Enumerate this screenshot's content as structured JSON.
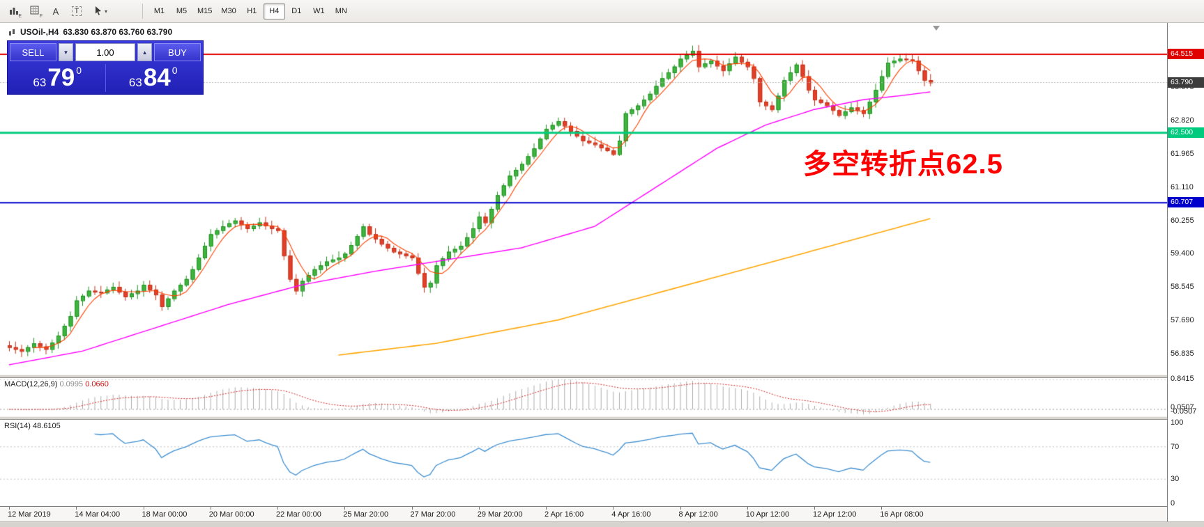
{
  "toolbar": {
    "text_tool_label": "A",
    "textbox_tool_label": "T",
    "indicator_icon_sub": "E",
    "grid_icon_sub": "F",
    "timeframes": [
      {
        "label": "M1",
        "active": false
      },
      {
        "label": "M5",
        "active": false
      },
      {
        "label": "M15",
        "active": false
      },
      {
        "label": "M30",
        "active": false
      },
      {
        "label": "H1",
        "active": false
      },
      {
        "label": "H4",
        "active": true
      },
      {
        "label": "D1",
        "active": false
      },
      {
        "label": "W1",
        "active": false
      },
      {
        "label": "MN",
        "active": false
      }
    ]
  },
  "chart": {
    "title": "USOil-,H4",
    "ohlc": "63.830 63.870 63.760 63.790",
    "annotation": "多空转折点62.5"
  },
  "order_panel": {
    "sell_label": "SELL",
    "buy_label": "BUY",
    "volume": "1.00",
    "volume_down_glyph": "▼",
    "volume_up_glyph": "▲",
    "sell_price_small": "63",
    "sell_price_big": "79",
    "sell_price_sup": "0",
    "buy_price_small": "63",
    "buy_price_big": "84",
    "buy_price_sup": "0"
  },
  "price_axis": {
    "labels": [
      {
        "text": "63.675",
        "price": 63.675
      },
      {
        "text": "62.820",
        "price": 62.82
      },
      {
        "text": "61.965",
        "price": 61.965
      },
      {
        "text": "61.110",
        "price": 61.11
      },
      {
        "text": "60.255",
        "price": 60.255
      },
      {
        "text": "59.400",
        "price": 59.4
      },
      {
        "text": "58.545",
        "price": 58.545
      },
      {
        "text": "57.690",
        "price": 57.69
      },
      {
        "text": "56.835",
        "price": 56.835
      }
    ],
    "badges": [
      {
        "text": "64.515",
        "price": 64.515,
        "bg": "#e00000"
      },
      {
        "text": "63.790",
        "price": 63.79,
        "bg": "#3c3c3c"
      },
      {
        "text": "62.500",
        "price": 62.5,
        "bg": "#00ca7d"
      },
      {
        "text": "60.707",
        "price": 60.707,
        "bg": "#0000cc"
      }
    ]
  },
  "macd": {
    "name": "MACD(12,26,9)",
    "main_value": "0.0995",
    "signal_value": "0.0660",
    "axis": [
      {
        "text": "0.8415",
        "v": 0.8415
      },
      {
        "text": "0.0507",
        "v": 0.0507
      },
      {
        "text": "-0.0507",
        "v": -0.0507
      }
    ]
  },
  "rsi": {
    "name": "RSI(14)",
    "value": "48.6105",
    "axis": [
      {
        "text": "100",
        "v": 100
      },
      {
        "text": "70",
        "v": 70
      },
      {
        "text": "30",
        "v": 30
      },
      {
        "text": "0",
        "v": 0
      }
    ]
  },
  "time_axis": {
    "labels": [
      "12 Mar 2019",
      "14 Mar 04:00",
      "18 Mar 00:00",
      "20 Mar 00:00",
      "22 Mar 00:00",
      "25 Mar 20:00",
      "27 Mar 20:00",
      "29 Mar 20:00",
      "2 Apr 16:00",
      "4 Apr 16:00",
      "8 Apr 12:00",
      "10 Apr 12:00",
      "12 Apr 12:00",
      "16 Apr 08:00"
    ]
  },
  "chart_data": {
    "type": "candlestick",
    "symbol": "USOil",
    "timeframe": "H4",
    "title": "USOil-,H4",
    "first_open": 57.05,
    "closes": [
      57.0,
      56.95,
      56.9,
      57.0,
      57.1,
      57.02,
      56.95,
      57.12,
      57.3,
      57.55,
      57.8,
      58.2,
      58.32,
      58.45,
      58.42,
      58.4,
      58.48,
      58.55,
      58.42,
      58.3,
      58.38,
      58.45,
      58.6,
      58.48,
      58.35,
      58.05,
      58.25,
      58.45,
      58.6,
      58.75,
      59.0,
      59.3,
      59.6,
      59.9,
      60.0,
      60.1,
      60.18,
      60.25,
      60.15,
      60.05,
      60.12,
      60.2,
      60.12,
      60.05,
      60.0,
      59.35,
      58.75,
      58.45,
      58.7,
      58.85,
      59.0,
      59.1,
      59.2,
      59.25,
      59.3,
      59.4,
      59.62,
      59.85,
      60.1,
      59.9,
      59.78,
      59.65,
      59.55,
      59.45,
      59.4,
      59.35,
      59.3,
      58.9,
      58.55,
      58.65,
      59.1,
      59.28,
      59.45,
      59.52,
      59.6,
      59.82,
      60.05,
      60.35,
      60.2,
      60.55,
      60.9,
      61.15,
      61.4,
      61.55,
      61.7,
      61.9,
      62.1,
      62.35,
      62.6,
      62.7,
      62.8,
      62.68,
      62.55,
      62.42,
      62.3,
      62.25,
      62.2,
      62.12,
      62.05,
      61.95,
      62.3,
      63.0,
      63.1,
      63.2,
      63.35,
      63.5,
      63.7,
      63.9,
      64.05,
      64.2,
      64.4,
      64.5,
      64.6,
      64.2,
      64.28,
      64.35,
      64.22,
      64.1,
      64.28,
      64.45,
      64.32,
      64.2,
      63.9,
      63.3,
      63.2,
      63.1,
      63.45,
      63.85,
      64.05,
      64.25,
      63.95,
      63.6,
      63.35,
      63.28,
      63.2,
      63.08,
      62.95,
      63.05,
      63.15,
      63.08,
      63.0,
      63.3,
      63.6,
      63.95,
      64.3,
      64.35,
      64.4,
      64.38,
      64.35,
      64.1,
      63.85,
      63.79
    ],
    "label_indices": [
      0,
      11,
      22,
      33,
      44,
      55,
      66,
      77,
      88,
      99,
      110,
      121,
      132,
      143
    ],
    "current_price": 63.79,
    "y_axis_ticks": [
      63.675,
      62.82,
      61.965,
      61.11,
      60.255,
      59.4,
      58.545,
      57.69,
      56.835
    ],
    "levels": [
      {
        "price": 64.515,
        "color": "#e00000",
        "width": 2
      },
      {
        "price": 62.5,
        "color": "#00ca7d",
        "width": 3
      },
      {
        "price": 60.707,
        "color": "#0000cc",
        "width": 2
      }
    ],
    "up_color": "#3fb53f",
    "down_color": "#e2402a",
    "ma_fast": {
      "type": "sma",
      "period": 5,
      "color": "#ff4000"
    },
    "ma_mid": {
      "color": "#ff00ff",
      "anchors": [
        [
          0,
          56.55
        ],
        [
          12,
          56.9
        ],
        [
          24,
          57.5
        ],
        [
          36,
          58.1
        ],
        [
          48,
          58.6
        ],
        [
          60,
          58.95
        ],
        [
          72,
          59.25
        ],
        [
          84,
          59.55
        ],
        [
          96,
          60.1
        ],
        [
          102,
          60.7
        ],
        [
          108,
          61.3
        ],
        [
          116,
          62.1
        ],
        [
          124,
          62.7
        ],
        [
          132,
          63.1
        ],
        [
          140,
          63.35
        ],
        [
          146,
          63.45
        ],
        [
          151,
          63.55
        ]
      ]
    },
    "ma_slow": {
      "color": "#ffa500",
      "anchors": [
        [
          54,
          56.8
        ],
        [
          70,
          57.1
        ],
        [
          90,
          57.7
        ],
        [
          110,
          58.55
        ],
        [
          130,
          59.4
        ],
        [
          151,
          60.3
        ]
      ]
    },
    "macd": {
      "fast": 12,
      "slow": 26,
      "signal": 9,
      "current_main": 0.0995,
      "current_signal": 0.066
    },
    "rsi": {
      "period": 14,
      "current": 48.6105,
      "levels": [
        70,
        30
      ]
    }
  }
}
